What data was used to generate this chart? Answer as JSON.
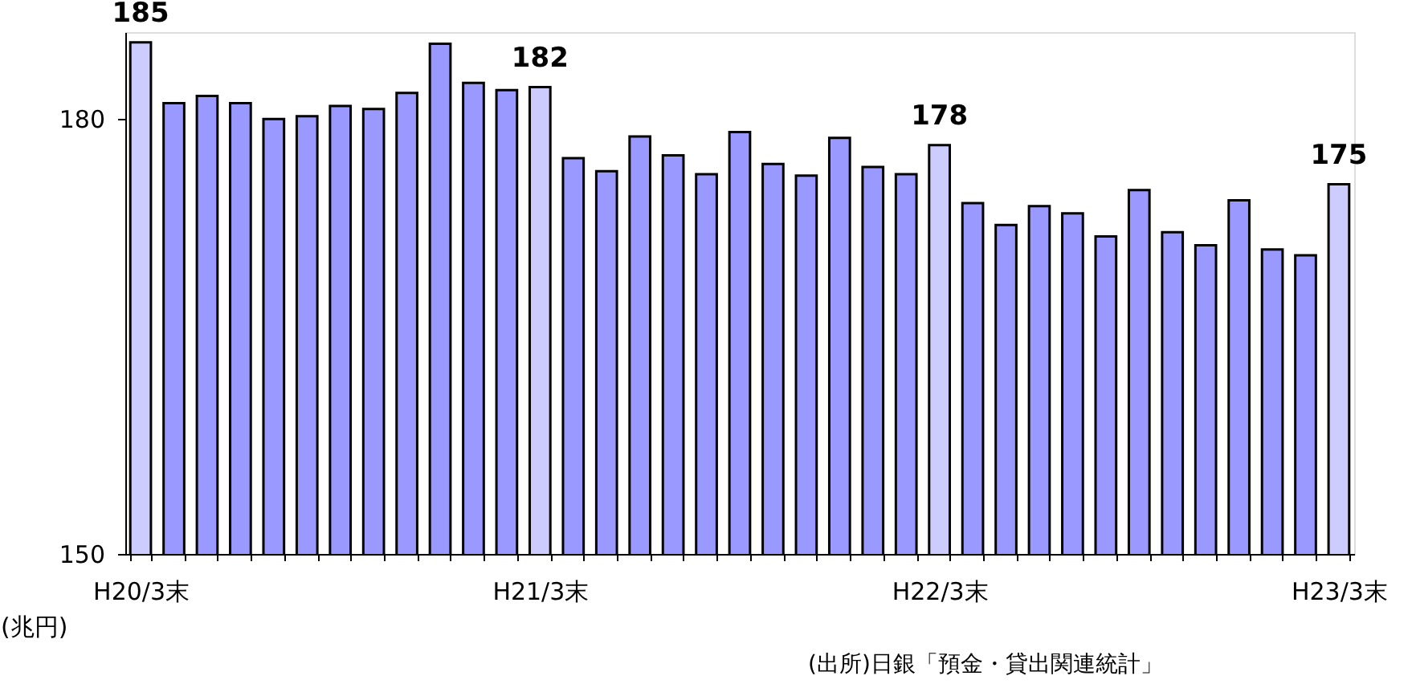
{
  "chart_data": {
    "type": "bar",
    "ylabel": "(兆円)",
    "categories": [
      "H20/3末",
      null,
      null,
      null,
      null,
      null,
      null,
      null,
      null,
      null,
      null,
      null,
      "H21/3末",
      null,
      null,
      null,
      null,
      null,
      null,
      null,
      null,
      null,
      null,
      null,
      "H22/3末",
      null,
      null,
      null,
      null,
      null,
      null,
      null,
      null,
      null,
      null,
      null,
      "H23/3末"
    ],
    "values": [
      185.3,
      181.1,
      181.6,
      181.1,
      180.0,
      180.2,
      180.9,
      180.7,
      181.8,
      185.2,
      182.5,
      182.0,
      182.2,
      177.3,
      176.4,
      178.8,
      177.5,
      176.2,
      179.1,
      176.9,
      176.1,
      178.7,
      176.7,
      176.2,
      178.2,
      174.2,
      172.7,
      174.0,
      173.5,
      171.9,
      175.1,
      172.2,
      171.3,
      174.4,
      171.0,
      170.6,
      175.5
    ],
    "colors": [
      "#ccccff",
      "#9999ff",
      "#9999ff",
      "#9999ff",
      "#9999ff",
      "#9999ff",
      "#9999ff",
      "#9999ff",
      "#9999ff",
      "#9999ff",
      "#9999ff",
      "#9999ff",
      "#ccccff",
      "#9999ff",
      "#9999ff",
      "#9999ff",
      "#9999ff",
      "#9999ff",
      "#9999ff",
      "#9999ff",
      "#9999ff",
      "#9999ff",
      "#9999ff",
      "#9999ff",
      "#ccccff",
      "#9999ff",
      "#9999ff",
      "#9999ff",
      "#9999ff",
      "#9999ff",
      "#9999ff",
      "#9999ff",
      "#9999ff",
      "#9999ff",
      "#9999ff",
      "#9999ff",
      "#ccccff"
    ],
    "value_labels": [
      "185",
      null,
      null,
      null,
      null,
      null,
      null,
      null,
      null,
      null,
      null,
      null,
      "182",
      null,
      null,
      null,
      null,
      null,
      null,
      null,
      null,
      null,
      null,
      null,
      "178",
      null,
      null,
      null,
      null,
      null,
      null,
      null,
      null,
      null,
      null,
      null,
      "175"
    ],
    "ylim": [
      150,
      186
    ],
    "yticks": [
      150,
      180
    ],
    "annotations": [
      "(出所)日銀「預金・貸出関連統計」"
    ]
  }
}
